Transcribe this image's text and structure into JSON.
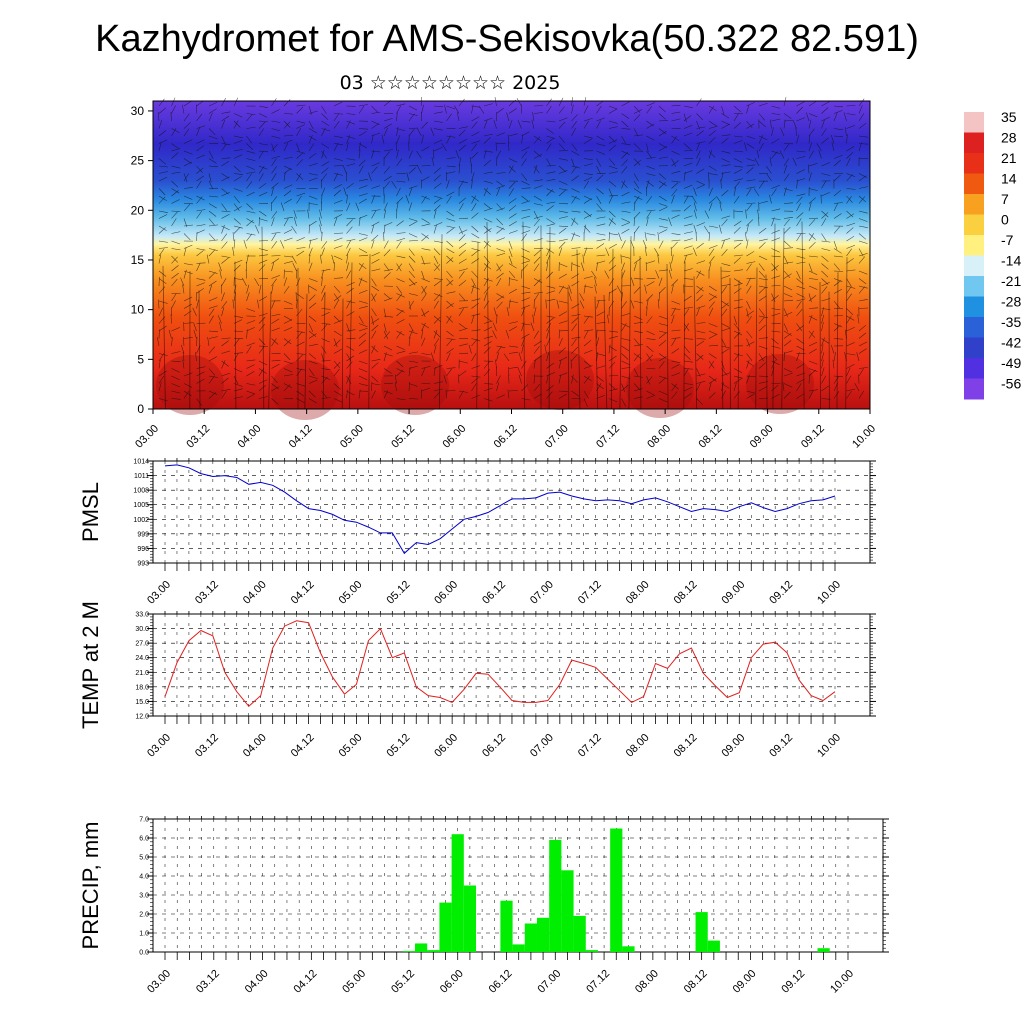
{
  "title": "Kazhydromet for AMS-Sekisovka(50.322 82.591)",
  "subtitle": "03 ☆☆☆☆☆☆☆☆ 2025",
  "x_labels": [
    "03.00",
    "03.12",
    "04.00",
    "04.12",
    "05.00",
    "05.12",
    "06.00",
    "06.12",
    "07.00",
    "07.12",
    "08.00",
    "08.12",
    "09.00",
    "09.12",
    "10.00"
  ],
  "chart_data": [
    {
      "type": "heatmap",
      "description_variable": "temperature cross-section with wind barbs",
      "y_ticks": [
        0,
        5,
        10,
        15,
        20,
        25,
        30
      ],
      "ylim": [
        0,
        31
      ],
      "x_categories": [
        "03.00",
        "03.12",
        "04.00",
        "04.12",
        "05.00",
        "05.12",
        "06.00",
        "06.12",
        "07.00",
        "07.12",
        "08.00",
        "08.12",
        "09.00",
        "09.12",
        "10.00"
      ],
      "colorbar_labels": [
        "35",
        "28",
        "21",
        "14",
        "7",
        "0",
        "-7",
        "-14",
        "-21",
        "-28",
        "-35",
        "-42",
        "-49",
        "-56"
      ],
      "colorbar_colors": [
        "#f4c4c4",
        "#dd2020",
        "#e83018",
        "#f05a10",
        "#f8a020",
        "#fbd040",
        "#fff080",
        "#d8f0f8",
        "#70c8f0",
        "#2090e0",
        "#2a60d8",
        "#3040c8",
        "#5030e0",
        "#8040e8"
      ]
    },
    {
      "type": "line",
      "ylabel": "PMSL",
      "color": "#0000cc",
      "ylim": [
        993,
        1014
      ],
      "y_ticks": [
        "993",
        "996",
        "999",
        "1002",
        "1005",
        "1008",
        "1011",
        "1014"
      ],
      "x": [
        0,
        1,
        2,
        3,
        4,
        5,
        6,
        7,
        8,
        9,
        10,
        11,
        12,
        13,
        14,
        15,
        16,
        17,
        18,
        19,
        20,
        21,
        22,
        23,
        24,
        25,
        26,
        27,
        28,
        29,
        30,
        31,
        32,
        33,
        34,
        35,
        36,
        37,
        38,
        39,
        40,
        41,
        42,
        43,
        44,
        45,
        46,
        47,
        48,
        49,
        50,
        51,
        52,
        53,
        54,
        55,
        56
      ],
      "values": [
        1013.0,
        1013.2,
        1012.6,
        1011.4,
        1010.8,
        1011.0,
        1010.6,
        1009.2,
        1009.6,
        1009.0,
        1007.6,
        1005.8,
        1004.2,
        1003.8,
        1003.0,
        1001.8,
        1001.4,
        1000.4,
        999.2,
        999.2,
        995.0,
        997.2,
        996.8,
        998.0,
        1000.0,
        1002.0,
        1002.6,
        1003.4,
        1004.8,
        1006.2,
        1006.2,
        1006.4,
        1007.4,
        1007.6,
        1006.8,
        1006.2,
        1005.8,
        1006.0,
        1005.8,
        1005.2,
        1006.0,
        1006.4,
        1005.6,
        1004.6,
        1003.6,
        1004.2,
        1004.0,
        1003.6,
        1004.6,
        1005.4,
        1004.4,
        1003.6,
        1004.2,
        1005.2,
        1005.8,
        1006.0,
        1006.8
      ]
    },
    {
      "type": "line",
      "ylabel": "TEMP at 2 M",
      "color": "#e02020",
      "ylim": [
        12.0,
        33.0
      ],
      "y_ticks": [
        "12.0",
        "15.0",
        "18.0",
        "21.0",
        "24.0",
        "27.0",
        "30.0",
        "33.0"
      ],
      "x": [
        0,
        1,
        2,
        3,
        4,
        5,
        6,
        7,
        8,
        9,
        10,
        11,
        12,
        13,
        14,
        15,
        16,
        17,
        18,
        19,
        20,
        21,
        22,
        23,
        24,
        25,
        26,
        27,
        28,
        29,
        30,
        31,
        32,
        33,
        34,
        35,
        36,
        37,
        38,
        39,
        40,
        41,
        42,
        43,
        44,
        45,
        46,
        47,
        48,
        49,
        50,
        51,
        52,
        53,
        54,
        55,
        56
      ],
      "values": [
        16.0,
        23.0,
        27.5,
        29.6,
        28.5,
        21.0,
        17.0,
        14.0,
        16.2,
        26.0,
        30.5,
        31.6,
        31.2,
        25.0,
        20.0,
        16.5,
        18.5,
        27.5,
        30.0,
        24.0,
        25.0,
        18.0,
        16.2,
        15.8,
        14.8,
        17.5,
        20.8,
        20.6,
        18.0,
        15.2,
        14.8,
        14.8,
        15.2,
        18.5,
        23.5,
        22.8,
        22.0,
        19.6,
        17.2,
        14.8,
        16.0,
        22.8,
        21.8,
        24.8,
        26.0,
        20.8,
        18.2,
        15.8,
        16.8,
        24.0,
        26.8,
        27.2,
        25.0,
        19.4,
        16.2,
        15.2,
        17.0
      ]
    },
    {
      "type": "bar",
      "ylabel": "PRECIP, mm",
      "color": "#00ee00",
      "ylim": [
        0.0,
        7.0
      ],
      "y_ticks": [
        "0.0",
        "1.0",
        "2.0",
        "3.0",
        "4.0",
        "5.0",
        "6.0",
        "7.0"
      ],
      "x": [
        0,
        1,
        2,
        3,
        4,
        5,
        6,
        7,
        8,
        9,
        10,
        11,
        12,
        13,
        14,
        15,
        16,
        17,
        18,
        19,
        20,
        21,
        22,
        23,
        24,
        25,
        26,
        27,
        28,
        29,
        30,
        31,
        32,
        33,
        34,
        35,
        36,
        37,
        38,
        39,
        40,
        41,
        42,
        43,
        44,
        45,
        46,
        47,
        48,
        49,
        50,
        51,
        52,
        53,
        54,
        55,
        56
      ],
      "values": [
        0,
        0,
        0,
        0,
        0,
        0,
        0,
        0,
        0,
        0,
        0,
        0,
        0,
        0,
        0,
        0,
        0,
        0,
        0,
        0,
        0.05,
        0.45,
        0.1,
        2.6,
        6.2,
        3.5,
        0,
        0,
        2.7,
        0.4,
        1.5,
        1.8,
        5.9,
        4.3,
        1.9,
        0.1,
        0,
        6.5,
        0.3,
        0,
        0,
        0,
        0,
        0,
        2.1,
        0.6,
        0,
        0,
        0,
        0,
        0,
        0,
        0,
        0,
        0.2,
        0,
        0
      ]
    }
  ]
}
